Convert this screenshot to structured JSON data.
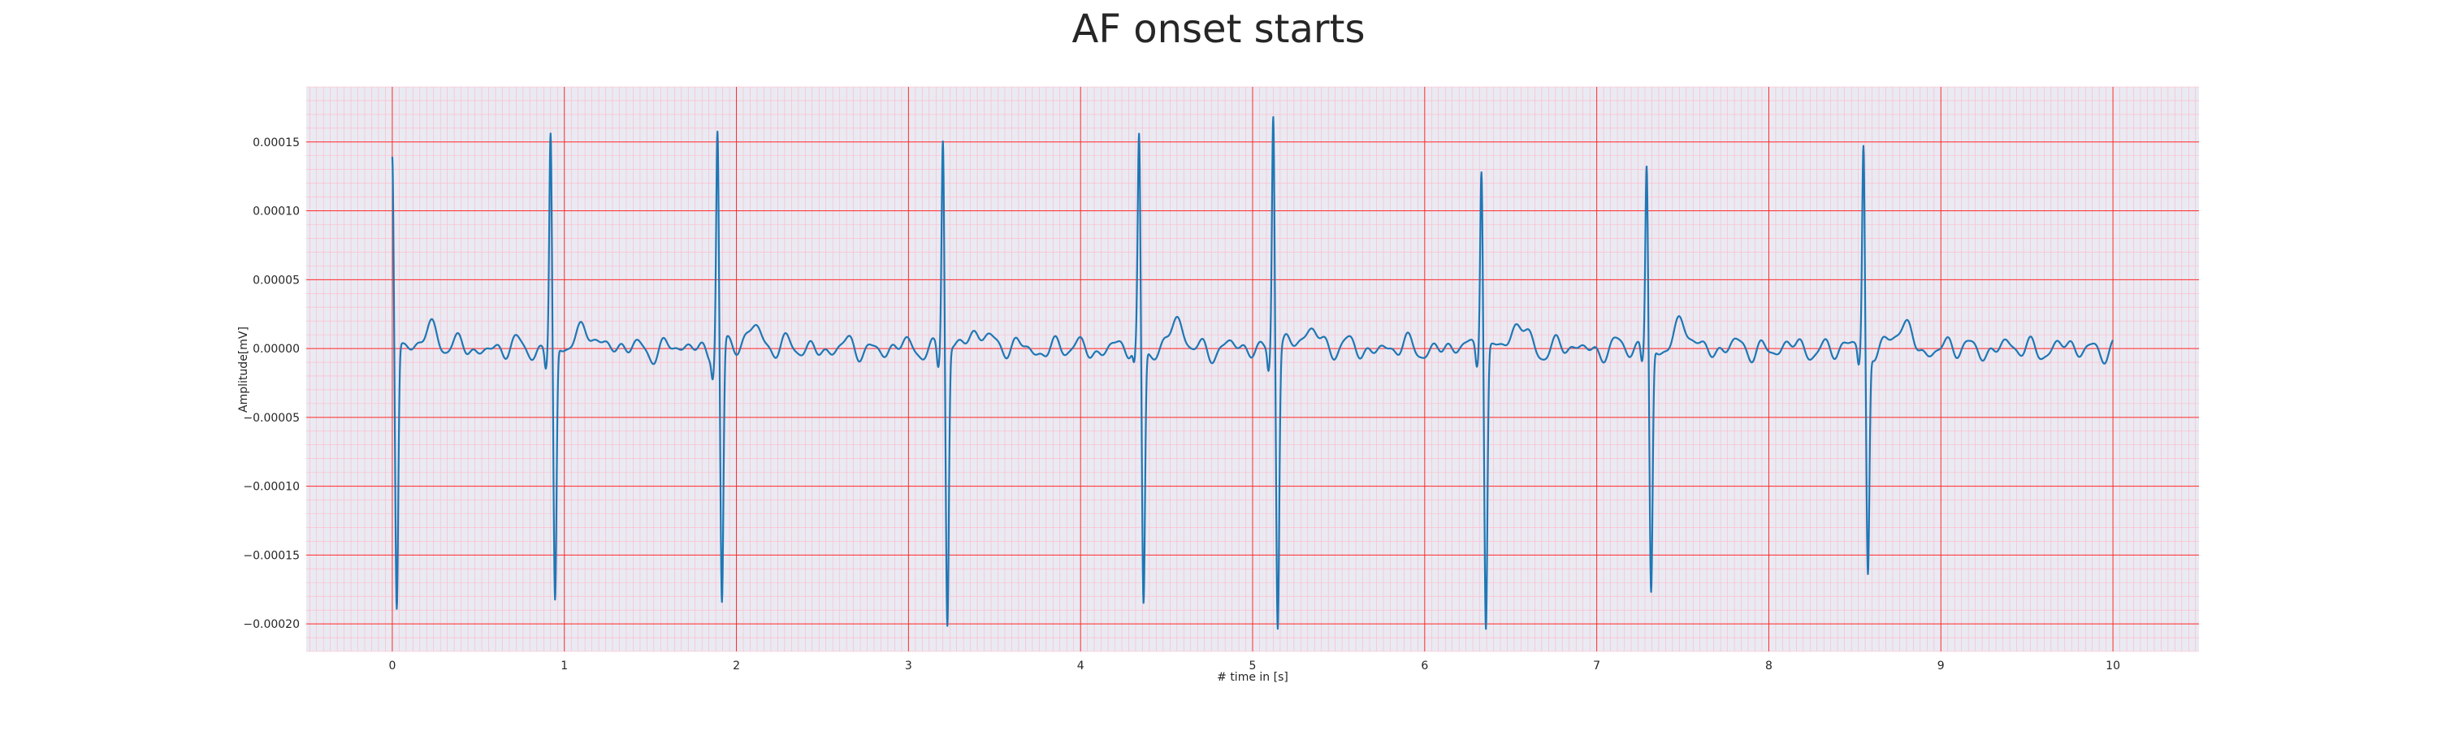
{
  "chart_data": {
    "type": "line",
    "title": "AF onset starts",
    "xlabel": "# time in [s]",
    "ylabel": "Amplitude[mV]",
    "xlim": [
      -0.5,
      10.5
    ],
    "ylim": [
      -0.00022,
      0.00019
    ],
    "x_ticks": [
      0,
      1,
      2,
      3,
      4,
      5,
      6,
      7,
      8,
      9,
      10
    ],
    "y_ticks": [
      -0.0002,
      -0.00015,
      -0.0001,
      -5e-05,
      0.0,
      5e-05,
      0.0001,
      0.00015
    ],
    "x_tick_labels": [
      "0",
      "1",
      "2",
      "3",
      "4",
      "5",
      "6",
      "7",
      "8",
      "9",
      "10"
    ],
    "y_tick_labels": [
      "−0.00020",
      "−0.00015",
      "−0.00010",
      "−0.00005",
      "0.00000",
      "0.00005",
      "0.00010",
      "0.00015"
    ],
    "grid": {
      "major": true,
      "minor": true,
      "major_color": "#ff2a2a",
      "minor_color": "#ffb6c8",
      "minor_step_x": 0.04,
      "minor_step_y": 1e-05
    },
    "colors": {
      "background": "#eaeaf2",
      "line": "#1f77b4"
    },
    "series": [
      {
        "x_range": [
          0.0,
          10.0
        ],
        "r_peaks": [
          {
            "t": 0.0,
            "r": 0.000135,
            "s": -0.000195
          },
          {
            "t": 0.92,
            "r": 0.000158,
            "s": -0.000186
          },
          {
            "t": 1.89,
            "r": 0.000162,
            "s": -0.000188
          },
          {
            "t": 3.2,
            "r": 0.000158,
            "s": -0.0002
          },
          {
            "t": 4.34,
            "r": 0.00015,
            "s": -0.000187
          },
          {
            "t": 5.12,
            "r": 0.000177,
            "s": -0.000197
          },
          {
            "t": 6.33,
            "r": 0.000142,
            "s": -0.000198
          },
          {
            "t": 7.29,
            "r": 0.000136,
            "s": -0.000177
          },
          {
            "t": 8.55,
            "r": 0.00015,
            "s": -0.000162
          }
        ],
        "baseline_amplitude": 1e-05
      }
    ]
  }
}
